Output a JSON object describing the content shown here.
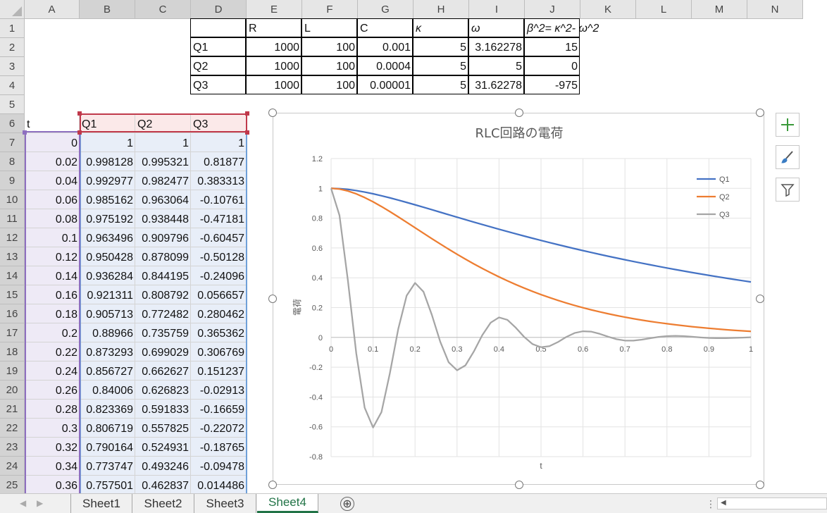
{
  "columns": [
    "A",
    "B",
    "C",
    "D",
    "E",
    "F",
    "G",
    "H",
    "I",
    "J",
    "K",
    "L",
    "M",
    "N"
  ],
  "rows": [
    "1",
    "2",
    "3",
    "4",
    "5",
    "6",
    "7",
    "8",
    "9",
    "10",
    "11",
    "12",
    "13",
    "14",
    "15",
    "16",
    "17",
    "18",
    "19",
    "20",
    "21",
    "22",
    "23",
    "24",
    "25"
  ],
  "param_table": {
    "headers": [
      "R",
      "L",
      "C",
      "κ",
      "ω",
      "β^2= κ^2- ω^2"
    ],
    "rows": [
      {
        "label": "Q1",
        "values": [
          "1000",
          "100",
          "0.001",
          "5",
          "3.162278",
          "15"
        ]
      },
      {
        "label": "Q2",
        "values": [
          "1000",
          "100",
          "0.0004",
          "5",
          "5",
          "0"
        ]
      },
      {
        "label": "Q3",
        "values": [
          "1000",
          "100",
          "0.00001",
          "5",
          "31.62278",
          "-975"
        ]
      }
    ]
  },
  "data_table": {
    "headers": [
      "t",
      "Q1",
      "Q2",
      "Q3"
    ],
    "rows": [
      [
        "0",
        "1",
        "1",
        "1"
      ],
      [
        "0.02",
        "0.998128",
        "0.995321",
        "0.81877"
      ],
      [
        "0.04",
        "0.992977",
        "0.982477",
        "0.383313"
      ],
      [
        "0.06",
        "0.985162",
        "0.963064",
        "-0.10761"
      ],
      [
        "0.08",
        "0.975192",
        "0.938448",
        "-0.47181"
      ],
      [
        "0.1",
        "0.963496",
        "0.909796",
        "-0.60457"
      ],
      [
        "0.12",
        "0.950428",
        "0.878099",
        "-0.50128"
      ],
      [
        "0.14",
        "0.936284",
        "0.844195",
        "-0.24096"
      ],
      [
        "0.16",
        "0.921311",
        "0.808792",
        "0.056657"
      ],
      [
        "0.18",
        "0.905713",
        "0.772482",
        "0.280462"
      ],
      [
        "0.2",
        "0.88966",
        "0.735759",
        "0.365362"
      ],
      [
        "0.22",
        "0.873293",
        "0.699029",
        "0.306769"
      ],
      [
        "0.24",
        "0.856727",
        "0.662627",
        "0.151237"
      ],
      [
        "0.26",
        "0.84006",
        "0.626823",
        "-0.02913"
      ],
      [
        "0.28",
        "0.823369",
        "0.591833",
        "-0.16659"
      ],
      [
        "0.3",
        "0.806719",
        "0.557825",
        "-0.22072"
      ],
      [
        "0.32",
        "0.790164",
        "0.524931",
        "-0.18765"
      ],
      [
        "0.34",
        "0.773747",
        "0.493246",
        "-0.09478"
      ],
      [
        "0.36",
        "0.757501",
        "0.462837",
        "0.014486"
      ]
    ]
  },
  "chart_data": {
    "type": "line",
    "title": "RLC回路の電荷",
    "xlabel": "t",
    "ylabel": "電荷",
    "xlim": [
      0,
      1
    ],
    "ylim": [
      -0.8,
      1.2
    ],
    "x_ticks": [
      "0",
      "0.1",
      "0.2",
      "0.3",
      "0.4",
      "0.5",
      "0.6",
      "0.7",
      "0.8",
      "0.9",
      "1"
    ],
    "y_ticks": [
      "1.2",
      "1",
      "0.8",
      "0.6",
      "0.4",
      "0.2",
      "0",
      "-0.2",
      "-0.4",
      "-0.6",
      "-0.8"
    ],
    "grid": true,
    "legend_position": "top-right",
    "x": [
      0,
      0.02,
      0.04,
      0.06,
      0.08,
      0.1,
      0.12,
      0.14,
      0.16,
      0.18,
      0.2,
      0.22,
      0.24,
      0.26,
      0.28,
      0.3,
      0.32,
      0.34,
      0.36,
      0.38,
      0.4,
      0.42,
      0.44,
      0.46,
      0.48,
      0.5,
      0.52,
      0.54,
      0.56,
      0.58,
      0.6,
      0.62,
      0.64,
      0.66,
      0.68,
      0.7,
      0.72,
      0.74,
      0.76,
      0.78,
      0.8,
      0.82,
      0.84,
      0.86,
      0.88,
      0.9,
      0.92,
      0.94,
      0.96,
      0.98,
      1.0
    ],
    "series": [
      {
        "name": "Q1",
        "color": "#4472C4",
        "values": [
          1,
          0.998128,
          0.992977,
          0.985162,
          0.975192,
          0.963496,
          0.950428,
          0.936284,
          0.921311,
          0.905713,
          0.88966,
          0.873293,
          0.856727,
          0.84006,
          0.823369,
          0.806719,
          0.790164,
          0.773747,
          0.757501,
          0.7415,
          0.7257,
          0.7102,
          0.695,
          0.68,
          0.6652,
          0.6507,
          0.6365,
          0.6225,
          0.6089,
          0.5955,
          0.5824,
          0.5696,
          0.557,
          0.5447,
          0.5327,
          0.5209,
          0.5094,
          0.4981,
          0.4871,
          0.4763,
          0.4657,
          0.4554,
          0.4453,
          0.4354,
          0.4258,
          0.4163,
          0.4071,
          0.3981,
          0.3892,
          0.3806,
          0.3721
        ]
      },
      {
        "name": "Q2",
        "color": "#ED7D31",
        "values": [
          1,
          0.995321,
          0.982477,
          0.963064,
          0.938448,
          0.909796,
          0.878099,
          0.844195,
          0.808792,
          0.772482,
          0.735759,
          0.699029,
          0.662627,
          0.626823,
          0.591833,
          0.557825,
          0.524931,
          0.493246,
          0.462837,
          0.4338,
          0.406,
          0.3796,
          0.3546,
          0.3309,
          0.3084,
          0.2873,
          0.2674,
          0.2487,
          0.2311,
          0.2146,
          0.1991,
          0.1847,
          0.1712,
          0.1586,
          0.1468,
          0.1359,
          0.1257,
          0.1162,
          0.1074,
          0.0992,
          0.0916,
          0.0845,
          0.078,
          0.0719,
          0.0663,
          0.0611,
          0.0563,
          0.0518,
          0.0477,
          0.0439,
          0.0404
        ]
      },
      {
        "name": "Q3",
        "color": "#A5A5A5",
        "values": [
          1,
          0.81877,
          0.383313,
          -0.10761,
          -0.47181,
          -0.60457,
          -0.50128,
          -0.24096,
          0.056657,
          0.280462,
          0.365362,
          0.306769,
          0.151237,
          -0.02913,
          -0.16659,
          -0.22072,
          -0.18765,
          -0.09478,
          0.014486,
          0.0985,
          0.1342,
          0.1175,
          0.0649,
          0.0029,
          -0.0452,
          -0.0659,
          -0.0589,
          -0.0318,
          0.0025,
          0.0294,
          0.0412,
          0.0384,
          0.0238,
          0.0046,
          -0.0122,
          -0.0214,
          -0.0215,
          -0.0151,
          -0.0058,
          0.0031,
          0.0088,
          0.0103,
          0.0083,
          0.0041,
          -0.0004,
          -0.0037,
          -0.0052,
          -0.0049,
          -0.0034,
          -0.0013,
          0.0006
        ]
      }
    ]
  },
  "sheet_tabs": [
    "Sheet1",
    "Sheet2",
    "Sheet3",
    "Sheet4"
  ],
  "active_tab": "Sheet4",
  "add_sheet_symbol": "⊕",
  "colors": {
    "accent": "#217346",
    "q1": "#4472C4",
    "q2": "#ED7D31",
    "q3": "#A5A5A5",
    "selection": "#c0394b"
  },
  "side_buttons": [
    "chart-elements-icon",
    "chart-styles-icon",
    "chart-filters-icon"
  ]
}
